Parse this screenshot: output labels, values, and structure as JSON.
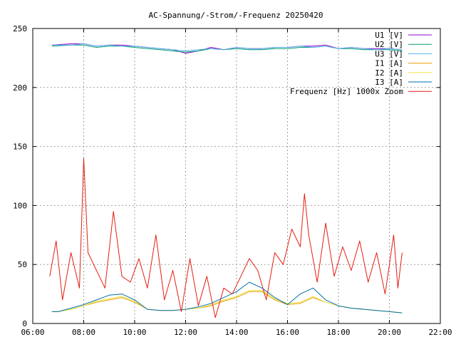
{
  "chart_data": {
    "type": "line",
    "title": "AC-Spannung/-Strom/-Frequenz 20250420",
    "xlim": [
      "06:00",
      "22:00"
    ],
    "ylim": [
      0,
      250
    ],
    "x_ticks": [
      "06:00",
      "08:00",
      "10:00",
      "12:00",
      "14:00",
      "16:00",
      "18:00",
      "20:00",
      "22:00"
    ],
    "y_ticks": [
      0,
      50,
      100,
      150,
      200,
      250
    ],
    "grid": true,
    "legend_position": "top-right",
    "series": [
      {
        "name": "U1 [V]",
        "color": "#9400d3",
        "x": [
          "06:45",
          "07:30",
          "08:00",
          "08:30",
          "09:00",
          "09:30",
          "10:00",
          "10:30",
          "11:00",
          "11:30",
          "12:00",
          "12:30",
          "13:00",
          "13:30",
          "14:00",
          "14:30",
          "15:00",
          "15:30",
          "16:00",
          "16:30",
          "17:00",
          "17:30",
          "18:00",
          "18:30",
          "19:00",
          "19:30",
          "20:00",
          "20:30"
        ],
        "values": [
          236,
          237,
          237,
          235,
          236,
          236,
          235,
          234,
          233,
          232,
          229,
          231,
          234,
          232,
          234,
          233,
          233,
          234,
          234,
          235,
          235,
          236,
          233,
          234,
          233,
          233,
          233,
          232
        ]
      },
      {
        "name": "U2 [V]",
        "color": "#009e73",
        "x": [
          "06:45",
          "07:30",
          "08:00",
          "08:30",
          "09:00",
          "09:30",
          "10:00",
          "10:30",
          "11:00",
          "11:30",
          "12:00",
          "12:30",
          "13:00",
          "13:30",
          "14:00",
          "14:30",
          "15:00",
          "15:30",
          "16:00",
          "16:30",
          "17:00",
          "17:30",
          "18:00",
          "18:30",
          "19:00",
          "19:30",
          "20:00",
          "20:30"
        ],
        "values": [
          235,
          236,
          236,
          234,
          235,
          235,
          234,
          233,
          232,
          231,
          230,
          231,
          233,
          232,
          233,
          232,
          232,
          233,
          233,
          234,
          234,
          235,
          233,
          233,
          232,
          232,
          232,
          231
        ]
      },
      {
        "name": "U3 [V]",
        "color": "#56b4e9",
        "x": [
          "06:45",
          "07:30",
          "08:00",
          "08:30",
          "09:00",
          "09:30",
          "10:00",
          "10:30",
          "11:00",
          "11:30",
          "12:00",
          "12:30",
          "13:00",
          "13:30",
          "14:00",
          "14:30",
          "15:00",
          "15:30",
          "16:00",
          "16:30",
          "17:00",
          "17:30",
          "18:00",
          "18:30",
          "19:00",
          "19:30",
          "20:00",
          "20:30"
        ],
        "values": [
          236,
          236,
          237,
          235,
          236,
          235,
          235,
          234,
          233,
          232,
          231,
          232,
          233,
          232,
          234,
          233,
          233,
          234,
          234,
          235,
          234,
          235,
          233,
          234,
          233,
          232,
          233,
          232
        ]
      },
      {
        "name": "I1 [A]",
        "color": "#e69f00",
        "x": [
          "06:45",
          "07:00",
          "07:30",
          "08:00",
          "08:30",
          "09:00",
          "09:30",
          "10:00",
          "10:30",
          "11:00",
          "11:30",
          "12:00",
          "12:30",
          "13:00",
          "13:30",
          "14:00",
          "14:30",
          "15:00",
          "15:30",
          "16:00",
          "16:30",
          "17:00",
          "17:30",
          "18:00",
          "18:30",
          "19:00",
          "19:30",
          "20:00",
          "20:30"
        ],
        "values": [
          10,
          10,
          12,
          15,
          18,
          20,
          22,
          18,
          12,
          11,
          11,
          12,
          13,
          15,
          19,
          22,
          27,
          27,
          20,
          16,
          17,
          22,
          18,
          15,
          13,
          12,
          11,
          10,
          9
        ]
      },
      {
        "name": "I2 [A]",
        "color": "#f0e442",
        "x": [
          "06:45",
          "07:00",
          "07:30",
          "08:00",
          "08:30",
          "09:00",
          "09:30",
          "10:00",
          "10:30",
          "11:00",
          "11:30",
          "12:00",
          "12:30",
          "13:00",
          "13:30",
          "14:00",
          "14:30",
          "15:00",
          "15:30",
          "16:00",
          "16:30",
          "17:00",
          "17:30",
          "18:00",
          "18:30",
          "19:00",
          "19:30",
          "20:00",
          "20:30"
        ],
        "values": [
          10,
          10,
          12,
          15,
          19,
          21,
          23,
          19,
          12,
          11,
          11,
          12,
          13,
          16,
          20,
          23,
          28,
          28,
          21,
          17,
          18,
          23,
          18,
          15,
          13,
          12,
          11,
          10,
          9
        ]
      },
      {
        "name": "I3 [A]",
        "color": "#0072b2",
        "x": [
          "06:45",
          "07:00",
          "07:30",
          "08:00",
          "08:30",
          "09:00",
          "09:30",
          "10:00",
          "10:30",
          "11:00",
          "11:30",
          "12:00",
          "12:30",
          "13:00",
          "13:30",
          "14:00",
          "14:30",
          "15:00",
          "15:30",
          "16:00",
          "16:30",
          "17:00",
          "17:30",
          "18:00",
          "18:30",
          "19:00",
          "19:30",
          "20:00",
          "20:30"
        ],
        "values": [
          10,
          10,
          13,
          16,
          20,
          24,
          25,
          20,
          12,
          11,
          11,
          12,
          14,
          17,
          22,
          27,
          35,
          30,
          22,
          16,
          25,
          30,
          20,
          15,
          13,
          12,
          11,
          10,
          9
        ]
      },
      {
        "name": "Frequenz [Hz] 1000x Zoom",
        "color": "#e51e10",
        "x": [
          "06:40",
          "06:55",
          "07:10",
          "07:30",
          "07:50",
          "08:00",
          "08:10",
          "08:30",
          "08:50",
          "09:10",
          "09:30",
          "09:50",
          "10:10",
          "10:30",
          "10:50",
          "11:10",
          "11:30",
          "11:50",
          "12:10",
          "12:30",
          "12:50",
          "13:10",
          "13:30",
          "13:50",
          "14:10",
          "14:30",
          "14:50",
          "15:10",
          "15:30",
          "15:50",
          "16:10",
          "16:30",
          "16:40",
          "16:50",
          "17:10",
          "17:30",
          "17:50",
          "18:10",
          "18:30",
          "18:50",
          "19:10",
          "19:30",
          "19:50",
          "20:10",
          "20:20",
          "20:30"
        ],
        "values": [
          40,
          70,
          20,
          60,
          30,
          140,
          60,
          45,
          30,
          95,
          40,
          35,
          55,
          30,
          75,
          20,
          45,
          10,
          55,
          15,
          40,
          5,
          30,
          25,
          40,
          55,
          45,
          20,
          60,
          50,
          80,
          65,
          110,
          75,
          35,
          85,
          40,
          65,
          45,
          70,
          35,
          60,
          25,
          75,
          30,
          60
        ]
      }
    ]
  }
}
